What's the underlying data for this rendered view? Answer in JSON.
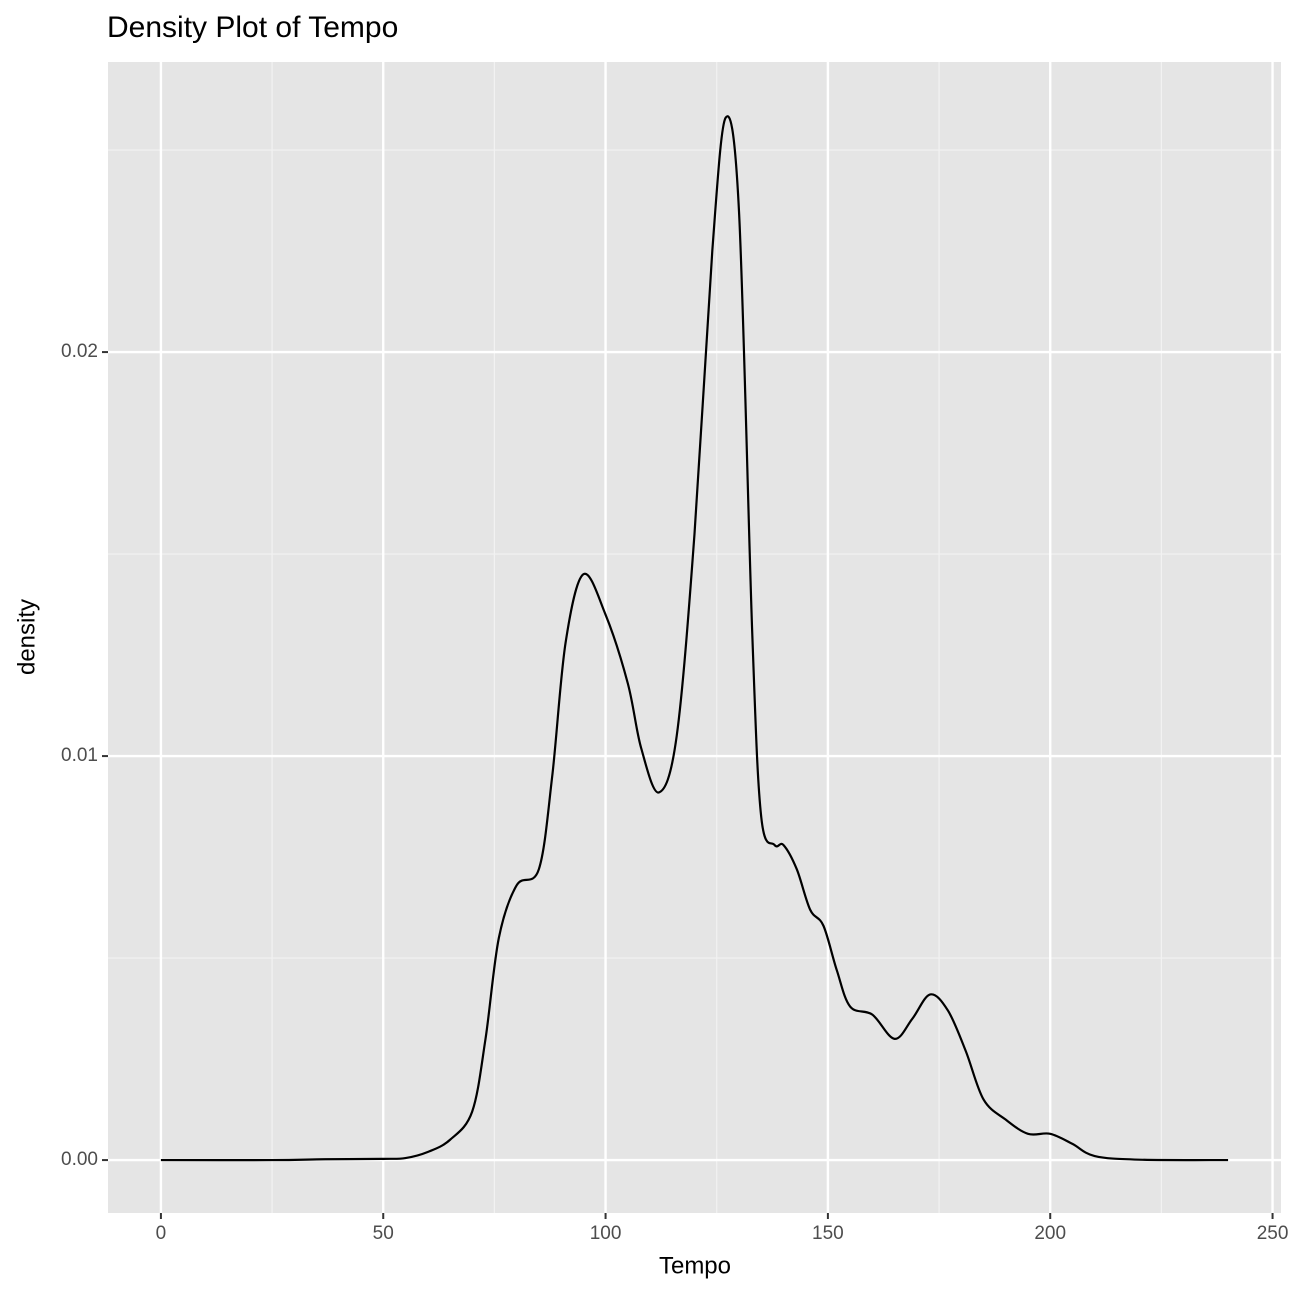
{
  "chart_data": {
    "type": "line",
    "title": "Density Plot of Tempo",
    "x_label": "Tempo",
    "y_label": "density",
    "x": [
      0,
      25,
      37,
      50,
      55,
      60,
      65,
      70,
      73,
      76,
      80,
      85,
      88,
      91,
      95,
      100,
      105,
      108,
      112,
      116,
      120,
      124,
      127,
      130,
      133,
      135,
      138,
      140,
      143,
      146,
      149,
      152,
      155,
      160,
      165,
      169,
      173,
      177,
      181,
      185,
      190,
      195,
      200,
      205,
      210,
      220,
      240
    ],
    "series": [
      {
        "name": "density",
        "color": "#000000",
        "values": [
          0,
          0,
          2e-05,
          3e-05,
          5e-05,
          0.0002,
          0.0005,
          0.0012,
          0.003,
          0.0055,
          0.0068,
          0.0072,
          0.0095,
          0.0128,
          0.0145,
          0.0135,
          0.0118,
          0.0102,
          0.0091,
          0.0105,
          0.0155,
          0.0225,
          0.0258,
          0.0235,
          0.013,
          0.0085,
          0.0078,
          0.0078,
          0.0072,
          0.0062,
          0.0058,
          0.0047,
          0.0038,
          0.0036,
          0.003,
          0.0035,
          0.0041,
          0.0037,
          0.0027,
          0.0015,
          0.001,
          0.00065,
          0.00065,
          0.0004,
          0.0001,
          1e-05,
          0
        ]
      }
    ],
    "xlim": [
      -11.9,
      251.9
    ],
    "ylim": [
      -0.00131,
      0.02718
    ],
    "xticks": [
      0,
      50,
      100,
      150,
      200,
      250
    ],
    "yticks": [
      {
        "value": 0,
        "label": "0.00"
      },
      0.01,
      0.02
    ],
    "x_minor_grid": [
      25,
      75,
      125,
      175,
      225
    ],
    "y_minor_grid": [
      0.005,
      0.015,
      0.025
    ],
    "grid": true
  }
}
